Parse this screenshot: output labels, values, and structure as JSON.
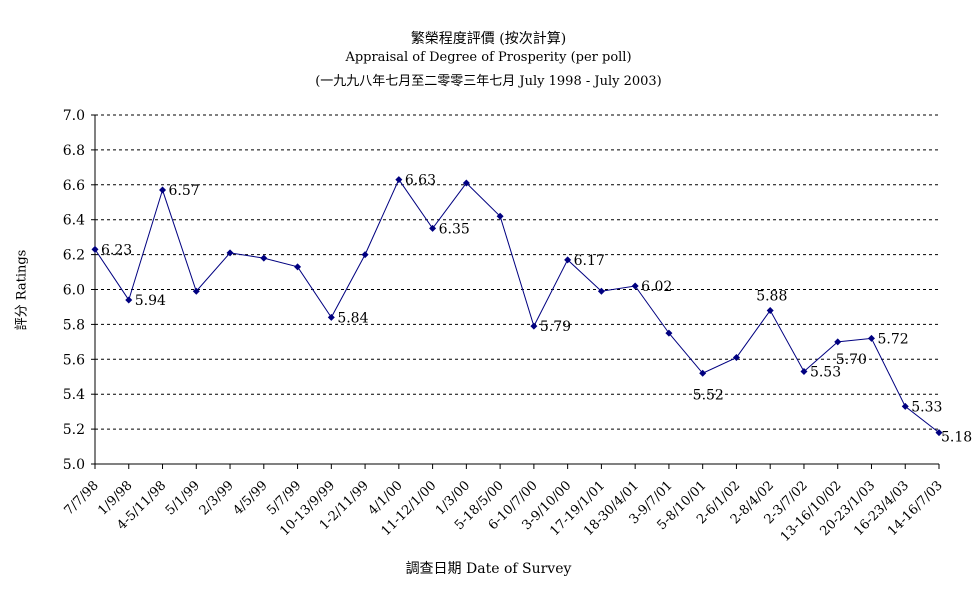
{
  "chart_data": {
    "type": "line",
    "title": "繁榮程度評價 (按次計算)",
    "subtitle": "Appraisal of Degree of Prosperity (per poll)",
    "subtitle2": "(一九九八年七月至二零零三年七月 July 1998 - July 2003)",
    "xlabel": "調查日期 Date of Survey",
    "ylabel": "評分 Ratings",
    "ylim": [
      5.0,
      7.0
    ],
    "yticks": [
      "7.0",
      "6.8",
      "6.6",
      "6.4",
      "6.2",
      "6.0",
      "5.8",
      "5.6",
      "5.4",
      "5.2",
      "5.0"
    ],
    "categories": [
      "7/7/98",
      "1/9/98",
      "4-5/11/98",
      "5/1/99",
      "2/3/99",
      "4/5/99",
      "5/7/99",
      "10-13/9/99",
      "1-2/11/99",
      "4/1/00",
      "11-12/1/00",
      "1/3/00",
      "5-18/5/00",
      "6-10/7/00",
      "3-9/10/00",
      "17-19/1/01",
      "18-30/4/01",
      "3-9/7/01",
      "5-8/10/01",
      "2-6/1/02",
      "2-8/4/02",
      "2-3/7/02",
      "13-16/10/02",
      "20-23/1/03",
      "16-23/4/03",
      "14-16/7/03"
    ],
    "values": [
      6.23,
      5.94,
      6.57,
      5.99,
      6.21,
      6.18,
      6.13,
      5.84,
      6.2,
      6.63,
      6.35,
      6.61,
      6.42,
      5.79,
      6.17,
      5.99,
      6.02,
      5.75,
      5.52,
      5.61,
      5.88,
      5.53,
      5.7,
      5.72,
      5.33,
      5.18
    ],
    "data_labels": [
      {
        "index": 0,
        "text": "6.23"
      },
      {
        "index": 1,
        "text": "5.94"
      },
      {
        "index": 2,
        "text": "6.57"
      },
      {
        "index": 7,
        "text": "5.84"
      },
      {
        "index": 9,
        "text": "6.63"
      },
      {
        "index": 10,
        "text": "6.35"
      },
      {
        "index": 13,
        "text": "5.79"
      },
      {
        "index": 14,
        "text": "6.17"
      },
      {
        "index": 16,
        "text": "6.02"
      },
      {
        "index": 18,
        "text": "5.52"
      },
      {
        "index": 20,
        "text": "5.88"
      },
      {
        "index": 21,
        "text": "5.53"
      },
      {
        "index": 22,
        "text": "5.70"
      },
      {
        "index": 23,
        "text": "5.72"
      },
      {
        "index": 24,
        "text": "5.33"
      },
      {
        "index": 25,
        "text": "5.18"
      }
    ],
    "grid": true,
    "line_color": "#000080"
  }
}
